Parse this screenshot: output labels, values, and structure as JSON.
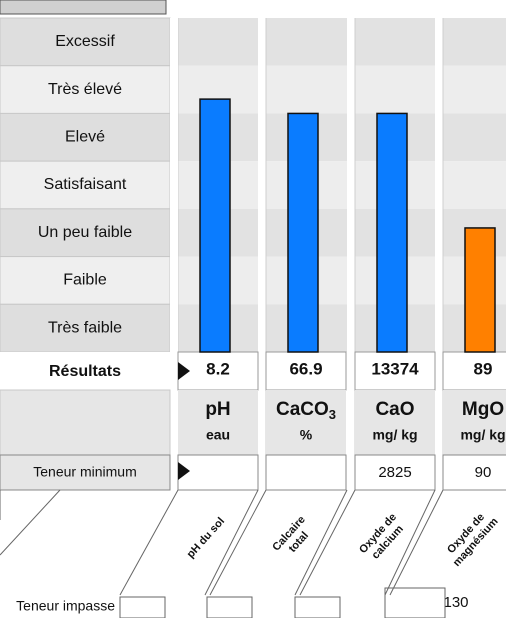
{
  "chart_data": {
    "type": "bar",
    "levels": [
      "Excessif",
      "Très élevé",
      "Elevé",
      "Satisfaisant",
      "Un peu faible",
      "Faible",
      "Très faible"
    ],
    "ylim": [
      0,
      7
    ],
    "results_label": "Résultats",
    "minimum_label": "Teneur minimum",
    "impasse_label": "Teneur impasse",
    "columns": [
      {
        "symbol": "pH",
        "symbol_sub": null,
        "unit": "eau",
        "name": [
          "pH du sol"
        ],
        "result": 8.2,
        "level": 5.3,
        "color": "#0a7cff",
        "minimum": null,
        "impasse": null
      },
      {
        "symbol": "CaCO",
        "symbol_sub": "3",
        "unit": "%",
        "name": [
          "Calcaire",
          "total"
        ],
        "result": 66.9,
        "level": 5.0,
        "color": "#0a7cff",
        "minimum": null,
        "impasse": null
      },
      {
        "symbol": "CaO",
        "symbol_sub": null,
        "unit": "mg/ kg",
        "name": [
          "Oxyde de",
          "calcium"
        ],
        "result": 13374,
        "level": 5.0,
        "color": "#0a7cff",
        "minimum": 2825,
        "impasse": null
      },
      {
        "symbol": "MgO",
        "symbol_sub": null,
        "unit": "mg/ kg",
        "name": [
          "Oxyde de",
          "magnésium"
        ],
        "result": 89,
        "level": 2.6,
        "color": "#ff8000",
        "minimum": 90,
        "impasse": 130
      }
    ]
  }
}
